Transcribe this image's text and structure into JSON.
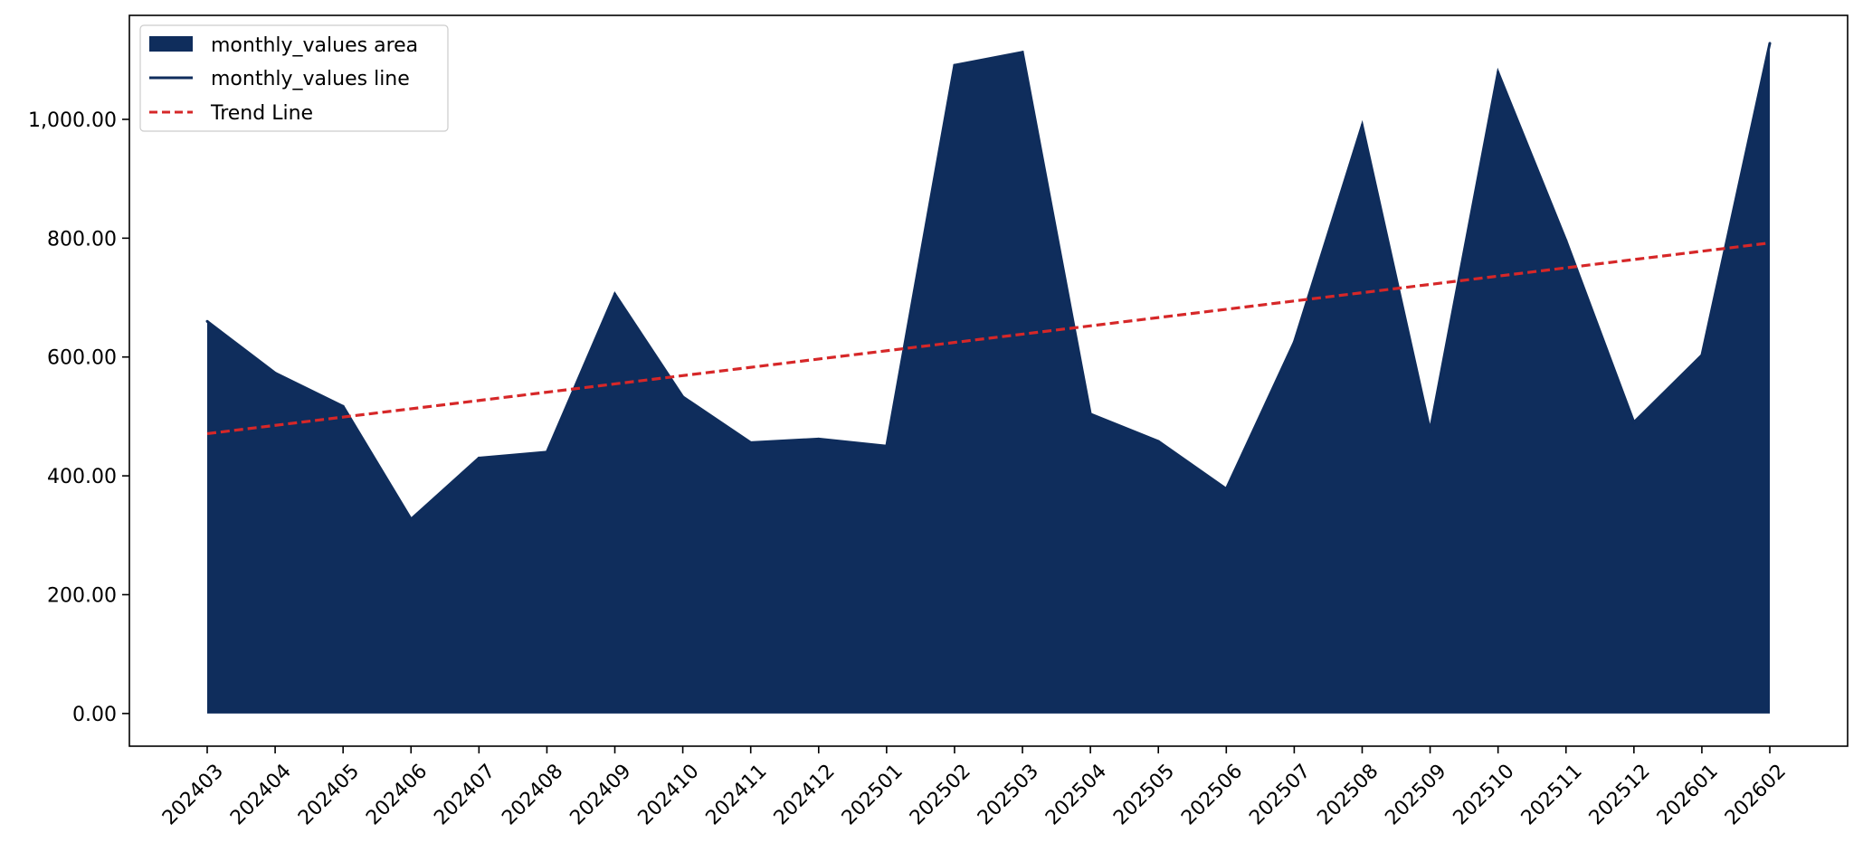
{
  "chart_data": {
    "type": "area",
    "title": "",
    "xlabel": "",
    "ylabel": "",
    "categories": [
      "202403",
      "202404",
      "202405",
      "202406",
      "202407",
      "202408",
      "202409",
      "202410",
      "202411",
      "202412",
      "202501",
      "202502",
      "202503",
      "202504",
      "202505",
      "202506",
      "202507",
      "202508",
      "202509",
      "202510",
      "202511",
      "202512",
      "202601",
      "202602"
    ],
    "series": [
      {
        "name": "monthly_values",
        "values": [
          660,
          573,
          517,
          327,
          430,
          440,
          706,
          533,
          456,
          462,
          450,
          1091,
          1113,
          504,
          458,
          378,
          625,
          990,
          476,
          1079,
          796,
          490,
          603,
          1128
        ],
        "color": "#0f2d5c"
      }
    ],
    "trend": {
      "name": "Trend Line",
      "start": 471,
      "end": 792,
      "color": "#d62728"
    },
    "ylim": [
      -55,
      1175
    ],
    "yticks": [
      0,
      200,
      400,
      600,
      800,
      1000
    ],
    "ytick_labels": [
      "0.00",
      "200.00",
      "400.00",
      "600.00",
      "800.00",
      "1,000.00"
    ],
    "legend": {
      "position": "top-left",
      "entries": [
        "monthly_values area",
        "monthly_values line",
        "Trend Line"
      ]
    },
    "grid": false
  }
}
